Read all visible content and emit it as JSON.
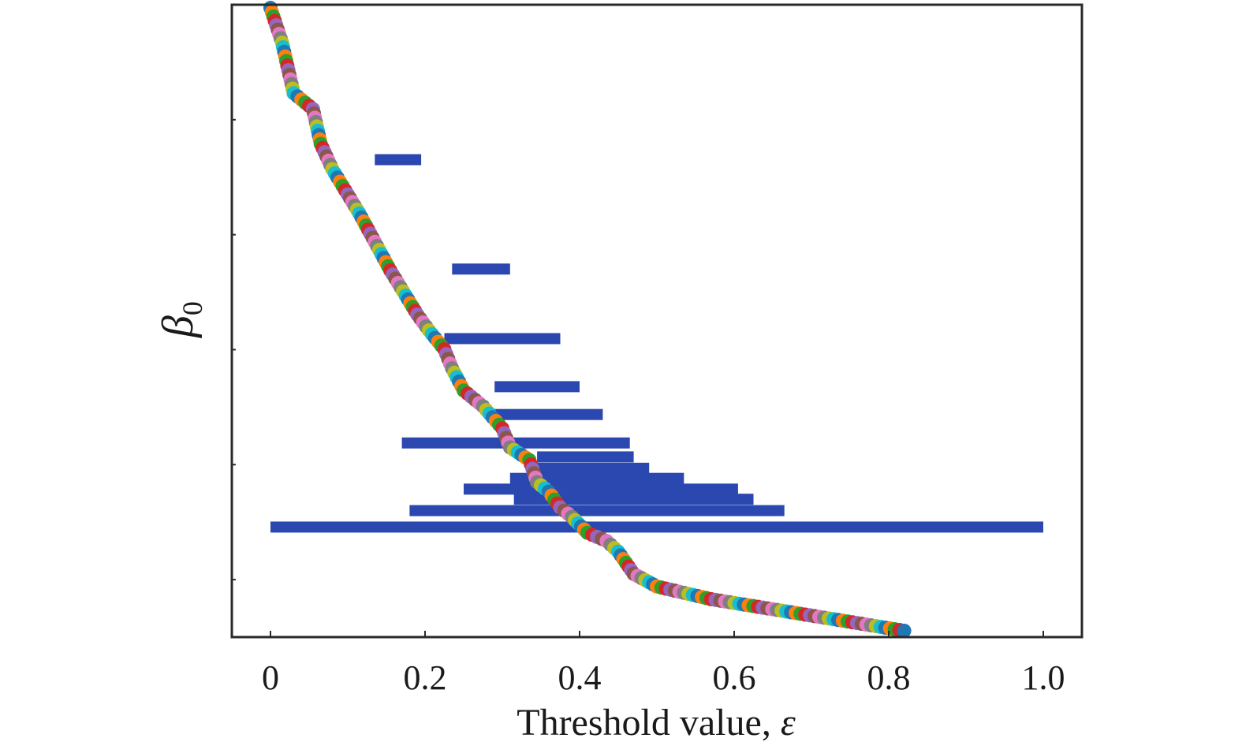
{
  "chart_data": {
    "type": "barcode",
    "xlabel": "Threshold value, ",
    "xlabel_symbol": "ε",
    "ylabel_symbol": "β",
    "ylabel_subscript": "0",
    "xlim": [
      -0.05,
      1.05
    ],
    "xticks": [
      {
        "value": 0,
        "label": "0"
      },
      {
        "value": 0.2,
        "label": "0.2"
      },
      {
        "value": 0.4,
        "label": "0.4"
      },
      {
        "value": 0.6,
        "label": "0.6"
      },
      {
        "value": 0.8,
        "label": "0.8"
      },
      {
        "value": 1.0,
        "label": "1.0"
      }
    ],
    "bar_color": "#2b47b0",
    "point_colors": [
      "#1f77b4",
      "#ff7f0e",
      "#2ca02c",
      "#d62728",
      "#9467bd",
      "#8c564b",
      "#e377c2",
      "#7f7f7f",
      "#bcbd22",
      "#17becf"
    ],
    "bars": [
      {
        "start": 0.135,
        "end": 0.195
      },
      {
        "start": 0.235,
        "end": 0.31
      },
      {
        "start": 0.225,
        "end": 0.375
      },
      {
        "start": 0.29,
        "end": 0.4
      },
      {
        "start": 0.285,
        "end": 0.43
      },
      {
        "start": 0.17,
        "end": 0.465
      },
      {
        "start": 0.345,
        "end": 0.47
      },
      {
        "start": 0.335,
        "end": 0.49
      },
      {
        "start": 0.31,
        "end": 0.535
      },
      {
        "start": 0.25,
        "end": 0.605
      },
      {
        "start": 0.315,
        "end": 0.625
      },
      {
        "start": 0.18,
        "end": 0.665
      },
      {
        "start": 0.0,
        "end": 1.0
      }
    ],
    "bar_levels": [
      0.245,
      0.418,
      0.528,
      0.604,
      0.648,
      0.693,
      0.715,
      0.733,
      0.749,
      0.766,
      0.782,
      0.8,
      0.826
    ],
    "death_curve": [
      [
        0.0,
        0.005
      ],
      [
        0.015,
        0.06
      ],
      [
        0.03,
        0.14
      ],
      [
        0.055,
        0.165
      ],
      [
        0.065,
        0.22
      ],
      [
        0.08,
        0.26
      ],
      [
        0.1,
        0.3
      ],
      [
        0.115,
        0.33
      ],
      [
        0.135,
        0.375
      ],
      [
        0.155,
        0.42
      ],
      [
        0.175,
        0.46
      ],
      [
        0.19,
        0.49
      ],
      [
        0.205,
        0.515
      ],
      [
        0.225,
        0.545
      ],
      [
        0.235,
        0.575
      ],
      [
        0.25,
        0.61
      ],
      [
        0.275,
        0.635
      ],
      [
        0.3,
        0.67
      ],
      [
        0.31,
        0.7
      ],
      [
        0.335,
        0.72
      ],
      [
        0.345,
        0.755
      ],
      [
        0.36,
        0.77
      ],
      [
        0.375,
        0.795
      ],
      [
        0.39,
        0.81
      ],
      [
        0.41,
        0.835
      ],
      [
        0.435,
        0.848
      ],
      [
        0.45,
        0.865
      ],
      [
        0.47,
        0.9
      ],
      [
        0.5,
        0.92
      ],
      [
        0.57,
        0.94
      ],
      [
        0.82,
        0.99
      ]
    ]
  }
}
